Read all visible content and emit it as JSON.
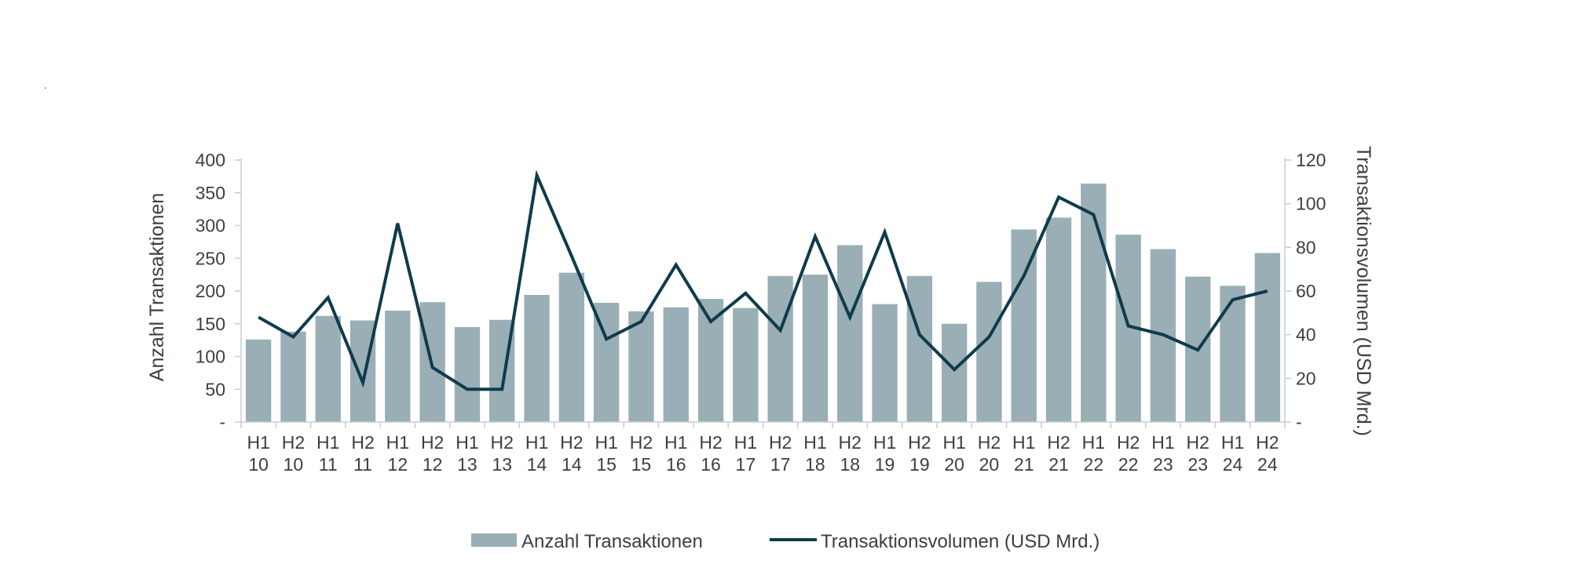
{
  "page": {
    "stray_mark": "."
  },
  "chart_data": {
    "type": "bar+line",
    "categories": [
      [
        "H1",
        "10"
      ],
      [
        "H2",
        "10"
      ],
      [
        "H1",
        "11"
      ],
      [
        "H2",
        "11"
      ],
      [
        "H1",
        "12"
      ],
      [
        "H2",
        "12"
      ],
      [
        "H1",
        "13"
      ],
      [
        "H2",
        "13"
      ],
      [
        "H1",
        "14"
      ],
      [
        "H2",
        "14"
      ],
      [
        "H1",
        "15"
      ],
      [
        "H2",
        "15"
      ],
      [
        "H1",
        "16"
      ],
      [
        "H2",
        "16"
      ],
      [
        "H1",
        "17"
      ],
      [
        "H2",
        "17"
      ],
      [
        "H1",
        "18"
      ],
      [
        "H2",
        "18"
      ],
      [
        "H1",
        "19"
      ],
      [
        "H2",
        "19"
      ],
      [
        "H1",
        "20"
      ],
      [
        "H2",
        "20"
      ],
      [
        "H1",
        "21"
      ],
      [
        "H2",
        "21"
      ],
      [
        "H1",
        "22"
      ],
      [
        "H2",
        "22"
      ],
      [
        "H1",
        "23"
      ],
      [
        "H2",
        "23"
      ],
      [
        "H1",
        "24"
      ],
      [
        "H2",
        "24"
      ]
    ],
    "series": [
      {
        "name": "Anzahl Transaktionen",
        "type": "bar",
        "axis": "left",
        "color": "#9aaeb6",
        "values": [
          126,
          138,
          162,
          155,
          170,
          183,
          145,
          156,
          194,
          228,
          182,
          169,
          175,
          188,
          174,
          223,
          225,
          270,
          180,
          223,
          150,
          214,
          294,
          312,
          364,
          286,
          264,
          222,
          208,
          258
        ]
      },
      {
        "name": "Transaktionsvolumen (USD Mrd.)",
        "type": "line",
        "axis": "right",
        "color": "#0f3b4b",
        "values": [
          48,
          39,
          57,
          18,
          91,
          25,
          15,
          15,
          113,
          76,
          38,
          46,
          72,
          46,
          59,
          42,
          85,
          48,
          87,
          40,
          24,
          39,
          67,
          103,
          95,
          44,
          40,
          33,
          56,
          60
        ]
      }
    ],
    "y_left": {
      "label": "Anzahl Transaktionen",
      "range": [
        0,
        400
      ],
      "ticks": [
        "-",
        "50",
        "100",
        "150",
        "200",
        "250",
        "300",
        "350",
        "400"
      ],
      "tick_values": [
        0,
        50,
        100,
        150,
        200,
        250,
        300,
        350,
        400
      ]
    },
    "y_right": {
      "label": "Transaktionsvolumen (USD Mrd.)",
      "range": [
        0,
        120
      ],
      "ticks": [
        "-",
        "20",
        "40",
        "60",
        "80",
        "100",
        "120"
      ],
      "tick_values": [
        0,
        20,
        40,
        60,
        80,
        100,
        120
      ]
    },
    "legend": {
      "placement": "bottom",
      "items": [
        {
          "label": "Anzahl Transaktionen",
          "kind": "bar",
          "color": "#9aaeb6"
        },
        {
          "label": "Transaktionsvolumen (USD Mrd.)",
          "kind": "line",
          "color": "#0f3b4b"
        }
      ]
    },
    "grid": false
  }
}
